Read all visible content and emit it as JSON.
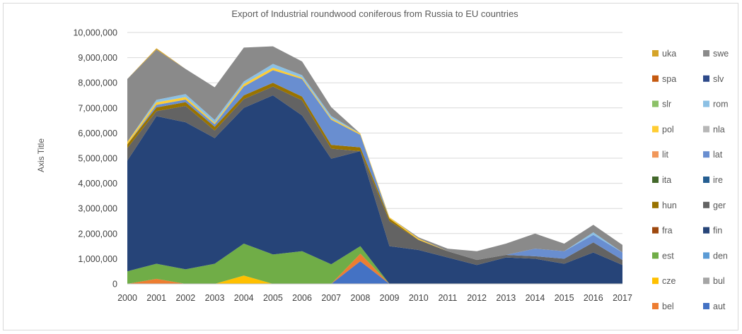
{
  "chart_data": {
    "type": "area",
    "stacked": true,
    "title": "Export of Industrial roundwood  coniferous  from Russia to EU countries",
    "ylabel": "Axis Title",
    "xlabel": "",
    "ylim": [
      0,
      10000000
    ],
    "yticks": [
      "0",
      "1,000,000",
      "2,000,000",
      "3,000,000",
      "4,000,000",
      "5,000,000",
      "6,000,000",
      "7,000,000",
      "8,000,000",
      "9,000,000",
      "10,000,000"
    ],
    "x": [
      "2000",
      "2001",
      "2002",
      "2003",
      "2004",
      "2005",
      "2006",
      "2007",
      "2008",
      "2009",
      "2010",
      "2011",
      "2012",
      "2013",
      "2014",
      "2015",
      "2016",
      "2017"
    ],
    "grid": "horizontal",
    "legend_position": "right",
    "legend_order": [
      "uka",
      "swe",
      "spa",
      "slv",
      "slr",
      "rom",
      "pol",
      "nla",
      "lit",
      "lat",
      "ita",
      "ire",
      "hun",
      "ger",
      "fra",
      "fin",
      "est",
      "den",
      "cze",
      "bul",
      "bel",
      "aut"
    ],
    "series": [
      {
        "name": "aut",
        "color": "#4472c4",
        "values": [
          0,
          0,
          0,
          0,
          0,
          0,
          0,
          0,
          900000,
          0,
          0,
          0,
          0,
          0,
          0,
          0,
          0,
          0
        ]
      },
      {
        "name": "bel",
        "color": "#ed7d31",
        "values": [
          0,
          200000,
          0,
          0,
          0,
          0,
          0,
          0,
          300000,
          0,
          0,
          0,
          0,
          0,
          0,
          0,
          0,
          0
        ]
      },
      {
        "name": "bul",
        "color": "#a5a5a5",
        "values": [
          0,
          0,
          0,
          0,
          0,
          0,
          0,
          0,
          0,
          0,
          0,
          0,
          0,
          0,
          0,
          0,
          0,
          0
        ]
      },
      {
        "name": "cze",
        "color": "#ffc000",
        "values": [
          0,
          0,
          0,
          0,
          330000,
          0,
          0,
          0,
          0,
          0,
          0,
          0,
          0,
          0,
          0,
          0,
          0,
          0
        ]
      },
      {
        "name": "den",
        "color": "#5b9bd5",
        "values": [
          0,
          0,
          0,
          0,
          0,
          0,
          0,
          0,
          0,
          0,
          0,
          0,
          0,
          0,
          0,
          0,
          0,
          0
        ]
      },
      {
        "name": "est",
        "color": "#70ad47",
        "values": [
          500000,
          600000,
          580000,
          800000,
          1270000,
          1170000,
          1300000,
          780000,
          300000,
          0,
          0,
          0,
          0,
          0,
          0,
          0,
          0,
          0
        ]
      },
      {
        "name": "fin",
        "color": "#264478",
        "values": [
          4400000,
          5870000,
          5850000,
          5000000,
          5400000,
          6330000,
          5400000,
          4200000,
          3780000,
          1500000,
          1350000,
          1050000,
          750000,
          1050000,
          1000000,
          800000,
          1250000,
          750000
        ]
      },
      {
        "name": "fra",
        "color": "#9e480e",
        "values": [
          0,
          0,
          0,
          0,
          0,
          0,
          0,
          0,
          0,
          0,
          0,
          0,
          0,
          0,
          0,
          0,
          0,
          0
        ]
      },
      {
        "name": "ger",
        "color": "#636363",
        "values": [
          500000,
          200000,
          650000,
          300000,
          350000,
          350000,
          600000,
          400000,
          0,
          1000000,
          400000,
          250000,
          200000,
          100000,
          100000,
          200000,
          400000,
          200000
        ]
      },
      {
        "name": "hun",
        "color": "#997300",
        "values": [
          150000,
          150000,
          150000,
          150000,
          150000,
          150000,
          150000,
          150000,
          150000,
          100000,
          0,
          0,
          0,
          0,
          0,
          0,
          0,
          0
        ]
      },
      {
        "name": "ire",
        "color": "#255e91",
        "values": [
          0,
          0,
          0,
          0,
          0,
          0,
          0,
          0,
          0,
          0,
          0,
          0,
          0,
          0,
          0,
          0,
          0,
          0
        ]
      },
      {
        "name": "ita",
        "color": "#43682b",
        "values": [
          0,
          0,
          0,
          0,
          0,
          0,
          0,
          0,
          0,
          0,
          0,
          0,
          0,
          0,
          0,
          0,
          0,
          0
        ]
      },
      {
        "name": "lat",
        "color": "#698ed0",
        "values": [
          0,
          100000,
          100000,
          100000,
          350000,
          500000,
          700000,
          1000000,
          500000,
          0,
          0,
          0,
          0,
          0,
          300000,
          300000,
          300000,
          300000
        ]
      },
      {
        "name": "lit",
        "color": "#f1975a",
        "values": [
          0,
          0,
          0,
          0,
          0,
          0,
          0,
          0,
          0,
          0,
          0,
          0,
          0,
          0,
          0,
          0,
          0,
          0
        ]
      },
      {
        "name": "nla",
        "color": "#b7b7b7",
        "values": [
          0,
          0,
          0,
          0,
          0,
          0,
          0,
          0,
          0,
          0,
          0,
          0,
          0,
          0,
          0,
          0,
          0,
          0
        ]
      },
      {
        "name": "pol",
        "color": "#ffcd33",
        "values": [
          100000,
          100000,
          100000,
          50000,
          100000,
          100000,
          50000,
          50000,
          50000,
          50000,
          50000,
          0,
          0,
          0,
          0,
          0,
          0,
          0
        ]
      },
      {
        "name": "rom",
        "color": "#8cc0e4",
        "values": [
          0,
          100000,
          120000,
          120000,
          100000,
          150000,
          100000,
          100000,
          0,
          0,
          0,
          0,
          0,
          0,
          0,
          0,
          100000,
          0
        ]
      },
      {
        "name": "slr",
        "color": "#8cc168",
        "values": [
          0,
          0,
          0,
          0,
          0,
          0,
          0,
          0,
          0,
          0,
          0,
          0,
          0,
          0,
          0,
          0,
          0,
          0
        ]
      },
      {
        "name": "slv",
        "color": "#2e4a8a",
        "values": [
          0,
          0,
          0,
          0,
          0,
          0,
          0,
          0,
          0,
          0,
          0,
          0,
          0,
          0,
          0,
          0,
          0,
          0
        ]
      },
      {
        "name": "spa",
        "color": "#c55a11",
        "values": [
          0,
          0,
          0,
          0,
          0,
          0,
          0,
          0,
          0,
          0,
          0,
          0,
          0,
          0,
          0,
          0,
          0,
          0
        ]
      },
      {
        "name": "swe",
        "color": "#8a8a8a",
        "values": [
          2500000,
          2000000,
          1000000,
          1300000,
          1350000,
          700000,
          550000,
          350000,
          0,
          0,
          50000,
          100000,
          350000,
          450000,
          600000,
          300000,
          300000,
          300000
        ]
      },
      {
        "name": "uka",
        "color": "#d5a429",
        "values": [
          0,
          50000,
          0,
          0,
          0,
          0,
          0,
          0,
          0,
          0,
          0,
          0,
          0,
          0,
          0,
          0,
          0,
          0
        ]
      }
    ]
  }
}
